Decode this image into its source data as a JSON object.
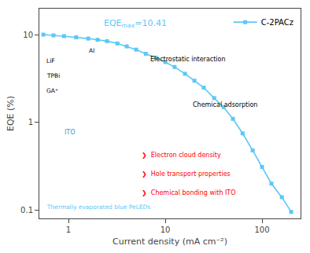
{
  "chart_data": {
    "type": "line",
    "xlabel": "Current density (mA cm⁻²)",
    "ylabel": "EQE (%)",
    "x": [
      0.55,
      0.7,
      0.9,
      1.2,
      1.6,
      2.0,
      2.5,
      3.2,
      4.0,
      5.0,
      6.3,
      8.0,
      10.0,
      12.5,
      16.0,
      20.0,
      25.0,
      32.0,
      40.0,
      50.0,
      63.0,
      80.0,
      100.0,
      125.0,
      160.0,
      200.0
    ],
    "series": [
      {
        "name": "C-2PACz",
        "color": "#5bc8f5",
        "marker": "square",
        "line_style": "solid",
        "values": [
          10.1,
          9.9,
          9.7,
          9.4,
          9.1,
          8.8,
          8.5,
          8.0,
          7.4,
          6.8,
          6.1,
          5.5,
          4.9,
          4.3,
          3.6,
          3.0,
          2.5,
          1.9,
          1.5,
          1.1,
          0.75,
          0.48,
          0.31,
          0.2,
          0.14,
          0.095
        ]
      }
    ],
    "xlim": [
      0.5,
      250
    ],
    "ylim": [
      0.08,
      20
    ],
    "xticks": [
      1,
      10,
      100
    ],
    "yticks": [
      0.1,
      1,
      10
    ],
    "log": true,
    "grid": false,
    "legend": "upper right",
    "annotations": [
      {
        "text": "EQE",
        "color": "#5bc8f5"
      },
      {
        "text": "max",
        "color": "#5bc8f5"
      },
      {
        "text": "=10.41",
        "color": "#5bc8f5"
      },
      {
        "text": "Thermally evaporated blue PeLEDs",
        "color": "#5bc8f5"
      },
      {
        "text": "❯  Electron cloud density",
        "color": "red"
      },
      {
        "text": "❯  Hole transport properties",
        "color": "red"
      },
      {
        "text": "❯  Chemical bonding with ITO",
        "color": "red"
      },
      {
        "text": "Electrostatic interaction",
        "color": "black"
      },
      {
        "text": "Chemical adsorption",
        "color": "black"
      },
      {
        "text": "ITO",
        "color": "#3399cc"
      },
      {
        "text": "Al",
        "color": "black"
      },
      {
        "text": "LiF",
        "color": "black"
      },
      {
        "text": "TPBi",
        "color": "black"
      },
      {
        "text": "GA⁺",
        "color": "black"
      }
    ]
  }
}
